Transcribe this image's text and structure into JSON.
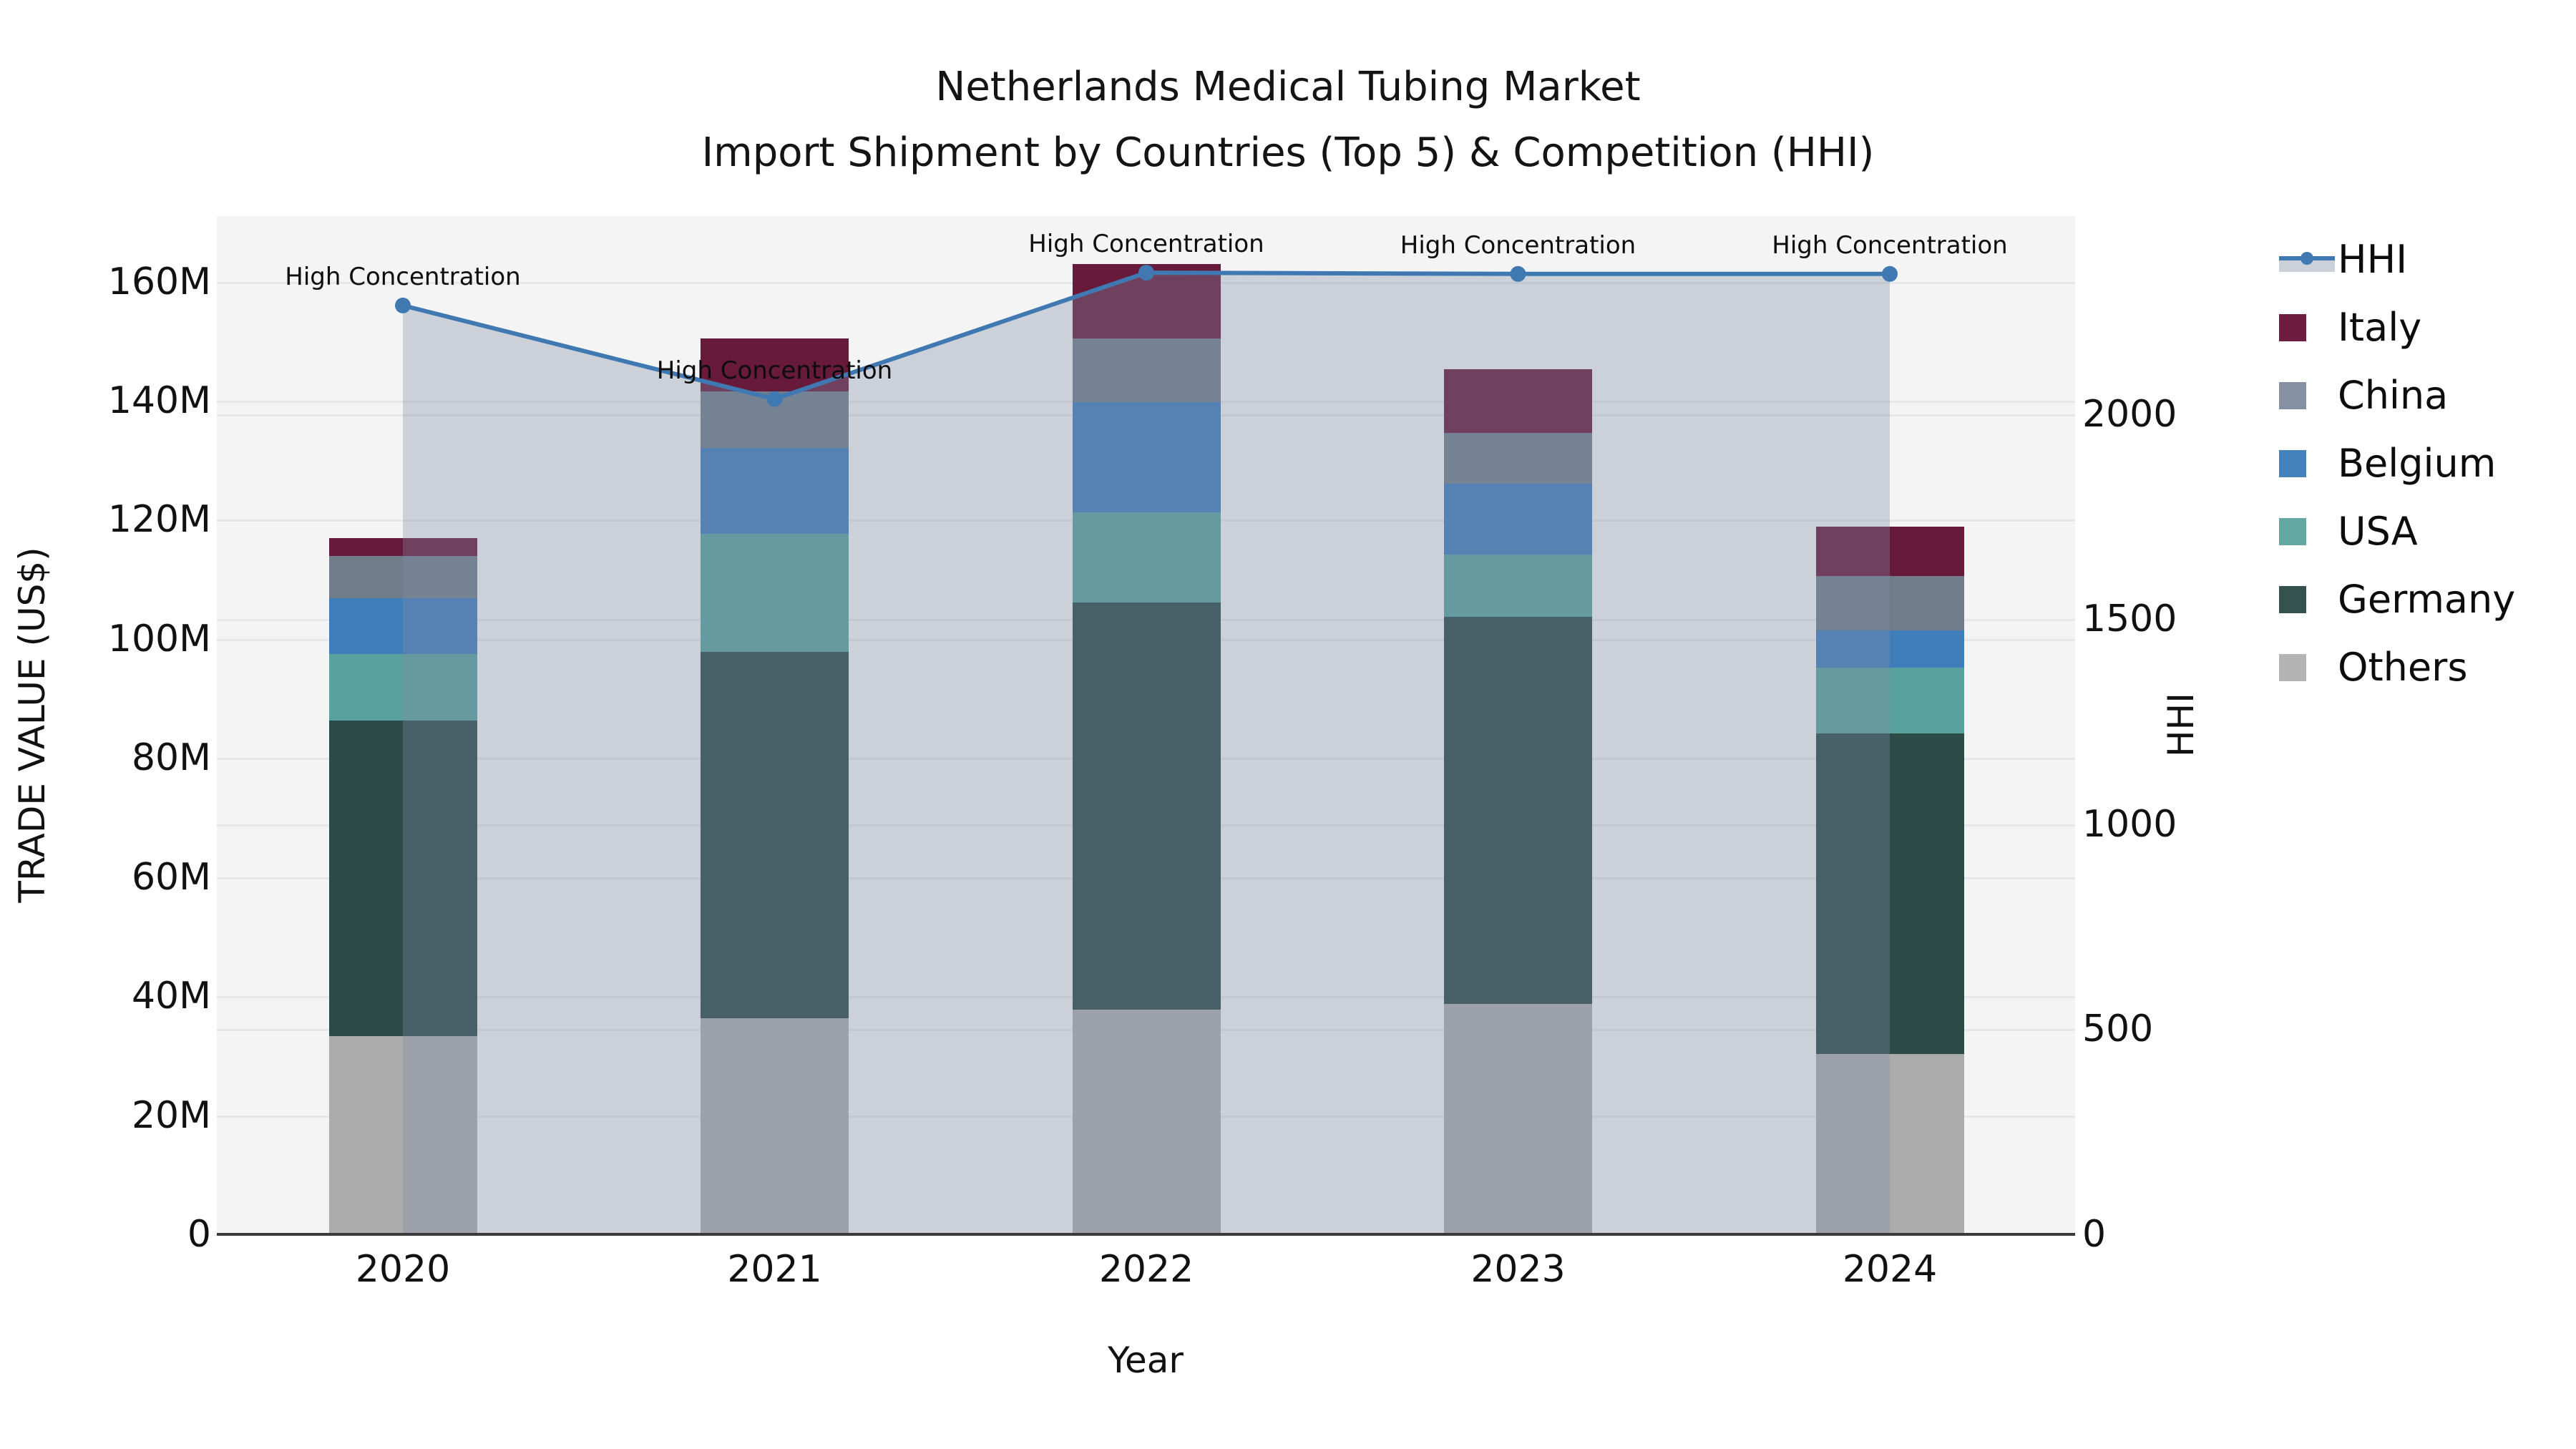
{
  "title": {
    "line1": "Netherlands Medical Tubing Market",
    "line2": "Import Shipment by Countries (Top 5) & Competition (HHI)"
  },
  "axes": {
    "x": {
      "label": "Year",
      "ticks": [
        "2020",
        "2021",
        "2022",
        "2023",
        "2024"
      ]
    },
    "y_left": {
      "label": "TRADE VALUE (US$)",
      "tick_labels": [
        "0",
        "20M",
        "40M",
        "60M",
        "80M",
        "100M",
        "120M",
        "140M",
        "160M"
      ],
      "tick_values": [
        0,
        20,
        40,
        60,
        80,
        100,
        120,
        140,
        160
      ]
    },
    "y_right": {
      "label": "HHI",
      "tick_labels": [
        "0",
        "500",
        "1000",
        "1500",
        "2000"
      ],
      "tick_values": [
        0,
        500,
        1000,
        1500,
        2000
      ]
    }
  },
  "legend": [
    {
      "label": "HHI",
      "type": "line",
      "color": "#4079b2",
      "band_color": "#cbd0d9"
    },
    {
      "label": "Italy",
      "type": "patch",
      "color": "#6e1d40"
    },
    {
      "label": "China",
      "type": "patch",
      "color": "#8591a3"
    },
    {
      "label": "Belgium",
      "type": "patch",
      "color": "#4581bb"
    },
    {
      "label": "USA",
      "type": "patch",
      "color": "#64a7a3"
    },
    {
      "label": "Germany",
      "type": "patch",
      "color": "#34534f"
    },
    {
      "label": "Others",
      "type": "patch",
      "color": "#b3b3b3"
    }
  ],
  "chart_data": {
    "type": "bar",
    "subtype": "stacked bars (left axis, US$ millions) + HHI line with shaded area (right axis)",
    "categories": [
      "2020",
      "2021",
      "2022",
      "2023",
      "2024"
    ],
    "title": "Netherlands Medical Tubing Market — Import Shipment by Countries (Top 5) & Competition (HHI)",
    "xlabel": "Year",
    "ylabel_left": "TRADE VALUE (US$)",
    "ylabel_right": "HHI",
    "ylim_left_millions": [
      0,
      171
    ],
    "ylim_right": [
      0,
      2483
    ],
    "grid": true,
    "legend_position": "right",
    "series": [
      {
        "name": "Others",
        "stack_order": 1,
        "values_millions": [
          33.3,
          36.3,
          37.7,
          38.7,
          30.3
        ],
        "color": "#ababab"
      },
      {
        "name": "Germany",
        "stack_order": 2,
        "values_millions": [
          53.0,
          61.5,
          68.4,
          65.0,
          53.8
        ],
        "color": "#2c4b47"
      },
      {
        "name": "USA",
        "stack_order": 3,
        "values_millions": [
          11.2,
          19.9,
          15.2,
          10.5,
          11.1
        ],
        "color": "#58a19e"
      },
      {
        "name": "Belgium",
        "stack_order": 4,
        "values_millions": [
          9.3,
          14.4,
          18.5,
          11.8,
          6.2
        ],
        "color": "#3f7dbb"
      },
      {
        "name": "China",
        "stack_order": 5,
        "values_millions": [
          7.1,
          9.5,
          10.6,
          8.6,
          9.1
        ],
        "color": "#717d8a"
      },
      {
        "name": "Italy",
        "stack_order": 6,
        "values_millions": [
          3.0,
          8.8,
          12.5,
          10.7,
          8.4
        ],
        "color": "#671a3a"
      }
    ],
    "line_series": {
      "name": "HHI",
      "axis": "right",
      "values": [
        2265,
        2037,
        2345,
        2342,
        2342
      ],
      "color": "#4079b2",
      "area_fill": "rgba(125,140,165,0.35)",
      "marker": "circle"
    },
    "annotations": [
      {
        "x": "2020",
        "text": "High Concentration"
      },
      {
        "x": "2021",
        "text": "High Concentration"
      },
      {
        "x": "2022",
        "text": "High Concentration"
      },
      {
        "x": "2023",
        "text": "High Concentration"
      },
      {
        "x": "2024",
        "text": "High Concentration"
      }
    ]
  }
}
